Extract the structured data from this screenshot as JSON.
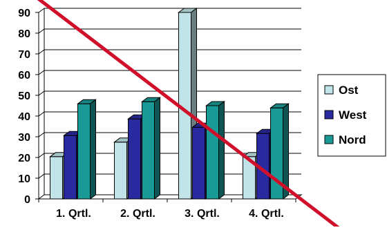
{
  "chart_data": {
    "type": "bar",
    "categories": [
      "1. Qrtl.",
      "2. Qrtl.",
      "3. Qrtl.",
      "4. Qrtl."
    ],
    "series": [
      {
        "name": "Ost",
        "values": [
          20.4,
          27.4,
          90,
          20.4
        ]
      },
      {
        "name": "West",
        "values": [
          30.6,
          38.6,
          34.6,
          31.6
        ]
      },
      {
        "name": "Nord",
        "values": [
          45.9,
          46.9,
          45,
          43.9
        ]
      }
    ],
    "ylim": [
      0,
      90
    ],
    "yticks": [
      0,
      10,
      20,
      30,
      40,
      50,
      60,
      70,
      80,
      90
    ],
    "grid": true,
    "legend": "right",
    "style": "3d",
    "overlay": "diagonal strike-through line",
    "colors": {
      "Ost": "#c0e4e8",
      "West": "#2a2aa0",
      "Nord": "#1a9a96",
      "strike": "#d0102a"
    }
  }
}
